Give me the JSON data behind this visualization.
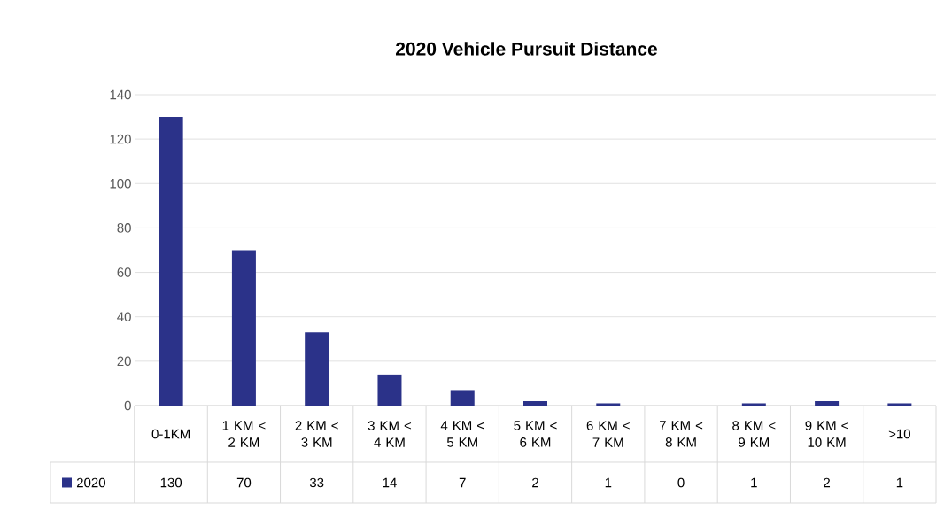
{
  "chart_data": {
    "type": "bar",
    "title": "2020 Vehicle Pursuit Distance",
    "categories": [
      "0-1KM",
      "1 KM < 2 KM",
      "2 KM < 3 KM",
      "3 KM < 4 KM",
      "4 KM < 5 KM",
      "5 KM < 6 KM",
      "6 KM < 7 KM",
      "7 KM < 8 KM",
      "8 KM < 9 KM",
      "9 KM < 10 KM",
      ">10"
    ],
    "series": [
      {
        "name": "2020",
        "color": "#2b3289",
        "values": [
          130,
          70,
          33,
          14,
          7,
          2,
          1,
          0,
          1,
          2,
          1
        ]
      }
    ],
    "ylim": [
      0,
      140
    ],
    "yticks": [
      0,
      20,
      40,
      60,
      80,
      100,
      120,
      140
    ],
    "grid": "y",
    "data_labels": true,
    "legend": "bottom"
  }
}
